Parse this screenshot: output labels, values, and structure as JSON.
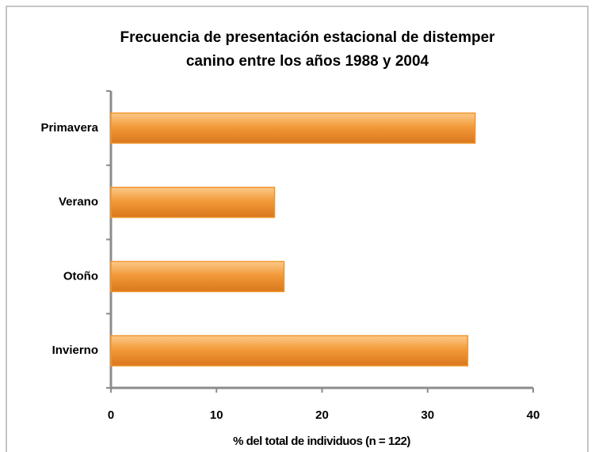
{
  "chart_data": {
    "type": "barh",
    "title": [
      "Frecuencia de presentación  estacional de distemper",
      "canino entre los años 1988 y 2004"
    ],
    "xlabel": "% del total de individuos (n = 122)",
    "categories": [
      "Primavera",
      "Verano",
      "Otoño",
      "Invierno"
    ],
    "values": [
      34.5,
      15.5,
      16.4,
      33.8
    ],
    "color": "#f0962e",
    "xlim": [
      0,
      40
    ],
    "xticks": [
      0,
      10,
      20,
      30,
      40
    ],
    "grid": false
  }
}
